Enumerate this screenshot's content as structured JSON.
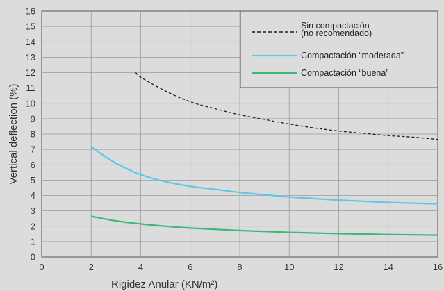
{
  "chart_data": {
    "type": "line",
    "xlabel": "Rigidez Anular (KN/m²)",
    "ylabel": "Vertical deflection (%)",
    "xlim": [
      0,
      16
    ],
    "ylim": [
      0,
      16
    ],
    "x_ticks": [
      "0",
      "2",
      "4",
      "6",
      "8",
      "10",
      "12",
      "14",
      "16"
    ],
    "y_ticks": [
      "0",
      "1",
      "2",
      "3",
      "4",
      "5",
      "6",
      "7",
      "8",
      "9",
      "10",
      "11",
      "12",
      "13",
      "14",
      "15",
      "16"
    ],
    "grid": true,
    "legend_position": "top-right",
    "series": [
      {
        "name": "Sin compactación\n(no recomendado)",
        "name_lines": [
          "Sin compactación",
          "(no recomendado)"
        ],
        "style": "dashed",
        "color": "#1f1f1f",
        "x": [
          3.8,
          4,
          5,
          6,
          7,
          8,
          9,
          10,
          11,
          12,
          13,
          14,
          15,
          16
        ],
        "y": [
          12.0,
          11.7,
          10.8,
          10.1,
          9.65,
          9.25,
          8.95,
          8.65,
          8.4,
          8.2,
          8.05,
          7.9,
          7.8,
          7.65
        ]
      },
      {
        "name": "Compactación “moderada”",
        "style": "solid",
        "color": "#5bc8ea",
        "x": [
          2,
          2.5,
          3,
          3.5,
          4,
          5,
          6,
          7,
          8,
          9,
          10,
          11,
          12,
          13,
          14,
          15,
          16
        ],
        "y": [
          7.2,
          6.6,
          6.1,
          5.7,
          5.35,
          4.9,
          4.6,
          4.4,
          4.2,
          4.05,
          3.9,
          3.8,
          3.7,
          3.62,
          3.55,
          3.5,
          3.45
        ]
      },
      {
        "name": "Compactación “buena”",
        "style": "solid",
        "color": "#3cb878",
        "x": [
          2,
          3,
          4,
          5,
          6,
          7,
          8,
          9,
          10,
          11,
          12,
          13,
          14,
          15,
          16
        ],
        "y": [
          2.65,
          2.35,
          2.15,
          2.0,
          1.88,
          1.8,
          1.72,
          1.66,
          1.6,
          1.56,
          1.52,
          1.49,
          1.46,
          1.44,
          1.42
        ]
      }
    ]
  }
}
